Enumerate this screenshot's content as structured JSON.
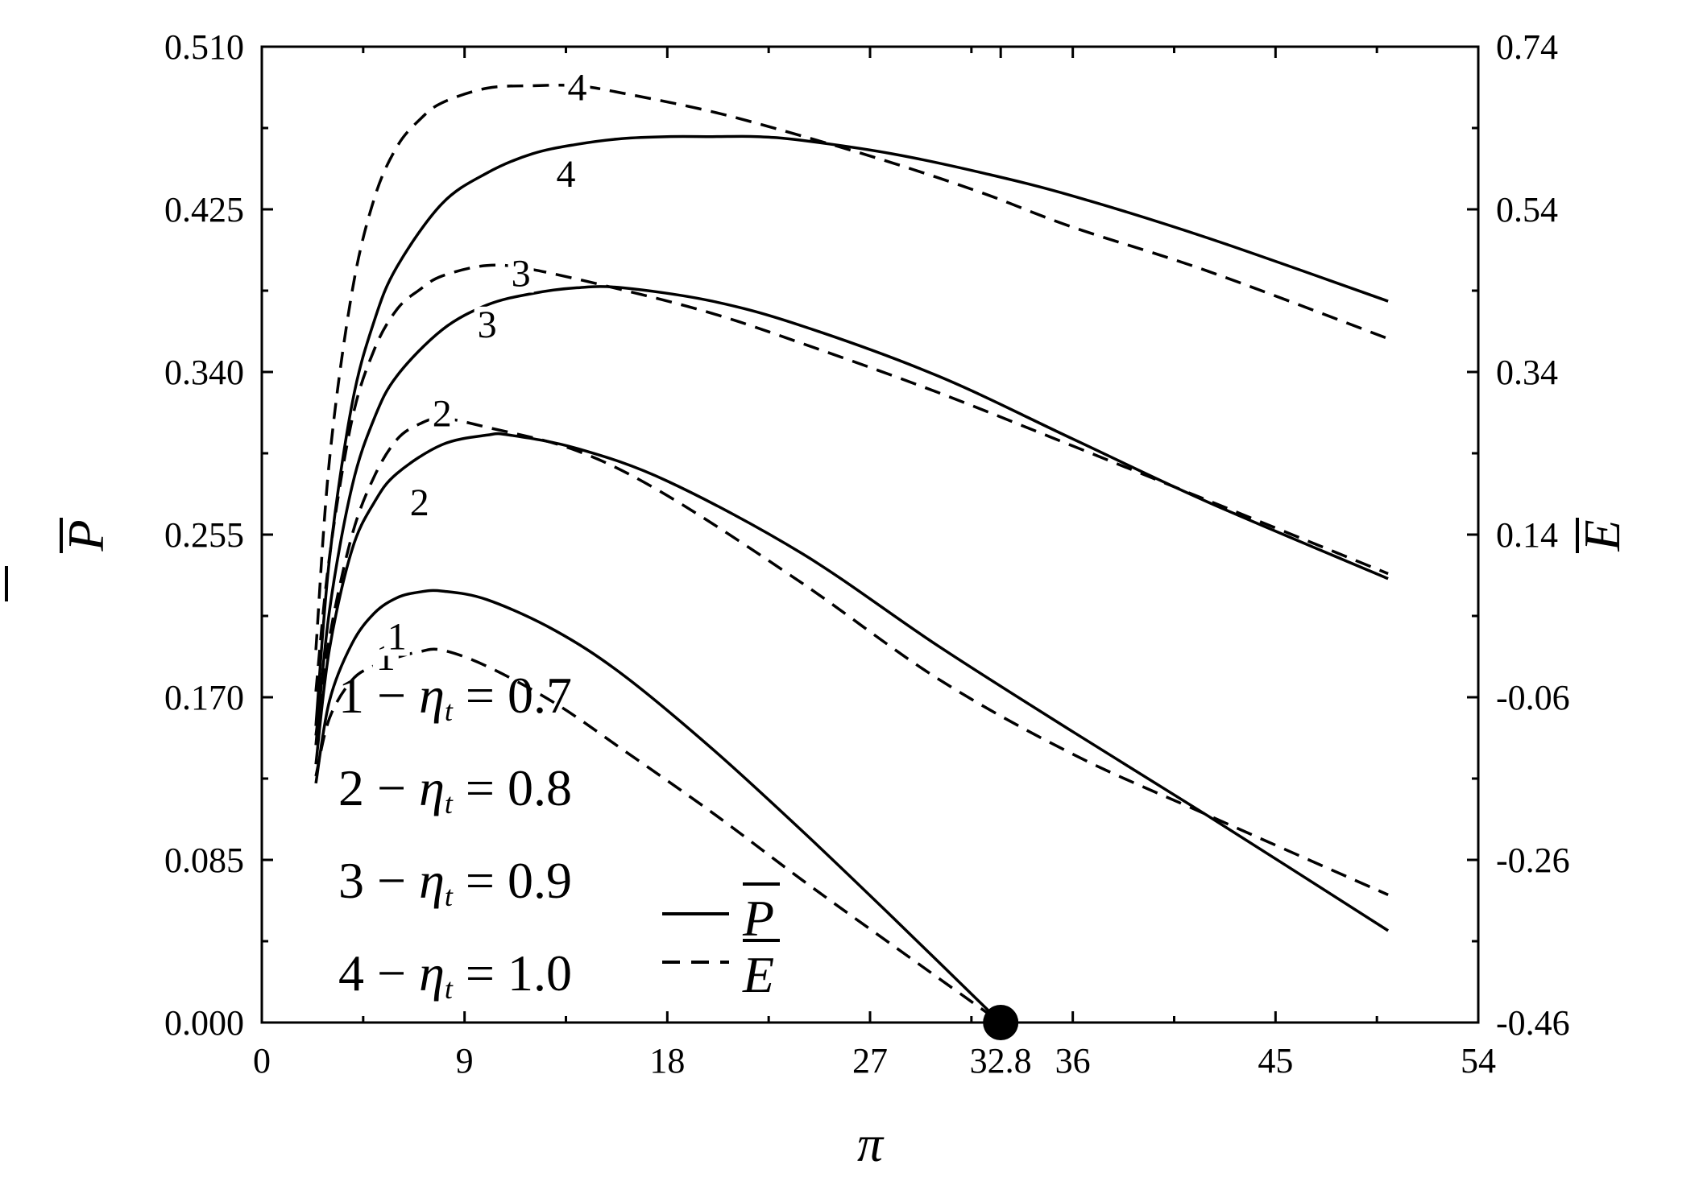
{
  "chart_data": {
    "type": "line",
    "title": "",
    "xlabel": "π",
    "ylabel_left": "P",
    "ylabel_right": "E",
    "xlim": [
      0,
      54
    ],
    "ylim_left": [
      0,
      0.51
    ],
    "ylim_right": [
      -0.46,
      0.74
    ],
    "x_ticks": [
      "0",
      "9",
      "18",
      "27",
      "32.8",
      "36",
      "45",
      "54"
    ],
    "x_tick_values": [
      0,
      9,
      18,
      27,
      32.8,
      36,
      45,
      54
    ],
    "y_left_ticks": [
      "0.000",
      "0.085",
      "0.170",
      "0.255",
      "0.340",
      "0.425",
      "0.510"
    ],
    "y_left_tick_values": [
      0,
      0.085,
      0.17,
      0.255,
      0.34,
      0.425,
      0.51
    ],
    "y_right_ticks": [
      "-0.46",
      "-0.26",
      "-0.06",
      "0.14",
      "0.34",
      "0.54",
      "0.74"
    ],
    "y_right_tick_values": [
      -0.46,
      -0.26,
      -0.06,
      0.14,
      0.34,
      0.54,
      0.74
    ],
    "grid": false,
    "legend_position": "bottom-left",
    "marker_point": {
      "x": 32.8,
      "y": 0.0
    },
    "legend": {
      "eta_rows": [
        {
          "prefix": "1 − ",
          "eta": "η",
          "sub": "t",
          "suffix": " = 0.7"
        },
        {
          "prefix": "2 − ",
          "eta": "η",
          "sub": "t",
          "suffix": " = 0.8"
        },
        {
          "prefix": "3 − ",
          "eta": "η",
          "sub": "t",
          "suffix": " = 0.9"
        },
        {
          "prefix": "4 − ",
          "eta": "η",
          "sub": "t",
          "suffix": " = 1.0"
        }
      ],
      "line_entries": [
        {
          "style": "solid",
          "label": "P"
        },
        {
          "style": "dashed",
          "label": "E"
        }
      ]
    },
    "series": [
      {
        "label": "1",
        "quantity": "P",
        "axis": "left",
        "style": "solid",
        "x": [
          2.4,
          3,
          4,
          5,
          6,
          7,
          8,
          10,
          13,
          16,
          20,
          24,
          28,
          32.8
        ],
        "y": [
          0.125,
          0.168,
          0.198,
          0.214,
          0.222,
          0.225,
          0.2255,
          0.221,
          0.205,
          0.182,
          0.143,
          0.1,
          0.055,
          0.0
        ]
      },
      {
        "label": "1",
        "quantity": "E",
        "axis": "right",
        "style": "dashed",
        "x": [
          2.4,
          3,
          4,
          5,
          6,
          7,
          8,
          10,
          13,
          16,
          20,
          24,
          28,
          32.8
        ],
        "y": [
          -0.157,
          -0.086,
          -0.039,
          -0.021,
          -0.011,
          -0.004,
          -0.002,
          -0.022,
          -0.067,
          -0.124,
          -0.202,
          -0.285,
          -0.365,
          -0.46
        ]
      },
      {
        "label": "2",
        "quantity": "P",
        "axis": "left",
        "style": "solid",
        "x": [
          2.4,
          3,
          4,
          5,
          6,
          8,
          10,
          11,
          14,
          18,
          24,
          30,
          36,
          42,
          50
        ],
        "y": [
          0.135,
          0.195,
          0.247,
          0.272,
          0.287,
          0.302,
          0.307,
          0.307,
          0.3,
          0.283,
          0.245,
          0.197,
          0.152,
          0.108,
          0.048
        ]
      },
      {
        "label": "2",
        "quantity": "E",
        "axis": "right",
        "style": "dashed",
        "x": [
          2.4,
          3,
          4,
          5,
          6,
          7,
          8,
          10,
          14,
          18,
          24,
          30,
          36,
          42,
          50
        ],
        "y": [
          -0.107,
          0.013,
          0.139,
          0.212,
          0.257,
          0.276,
          0.283,
          0.272,
          0.243,
          0.188,
          0.08,
          -0.037,
          -0.13,
          -0.205,
          -0.303
        ]
      },
      {
        "label": "3",
        "quantity": "P",
        "axis": "left",
        "style": "solid",
        "x": [
          2.4,
          3,
          4,
          5,
          6,
          8,
          10,
          12,
          14,
          16,
          20,
          24,
          30,
          36,
          42,
          50
        ],
        "y": [
          0.145,
          0.215,
          0.28,
          0.316,
          0.338,
          0.362,
          0.375,
          0.381,
          0.384,
          0.384,
          0.377,
          0.364,
          0.338,
          0.305,
          0.272,
          0.232
        ]
      },
      {
        "label": "3",
        "quantity": "E",
        "axis": "right",
        "style": "dashed",
        "x": [
          2.4,
          3,
          4,
          5,
          6,
          7,
          8,
          10,
          12,
          16,
          20,
          24,
          30,
          36,
          42,
          50
        ],
        "y": [
          -0.053,
          0.112,
          0.281,
          0.368,
          0.417,
          0.441,
          0.458,
          0.471,
          0.466,
          0.441,
          0.412,
          0.375,
          0.315,
          0.249,
          0.182,
          0.092
        ]
      },
      {
        "label": "4",
        "quantity": "P",
        "axis": "left",
        "style": "solid",
        "x": [
          2.4,
          3,
          4,
          5,
          6,
          8,
          10,
          12,
          14,
          16,
          18,
          20,
          22,
          24,
          28,
          32,
          36,
          42,
          50
        ],
        "y": [
          0.155,
          0.242,
          0.323,
          0.367,
          0.395,
          0.428,
          0.444,
          0.454,
          0.459,
          0.462,
          0.463,
          0.463,
          0.463,
          0.461,
          0.454,
          0.444,
          0.432,
          0.41,
          0.377
        ]
      },
      {
        "label": "4",
        "quantity": "E",
        "axis": "right",
        "style": "dashed",
        "x": [
          2.4,
          3,
          4,
          5,
          6,
          7,
          8,
          10,
          12,
          14,
          16,
          20,
          24,
          28,
          32,
          36,
          42,
          50
        ],
        "y": [
          -0.002,
          0.231,
          0.438,
          0.554,
          0.617,
          0.65,
          0.671,
          0.689,
          0.692,
          0.692,
          0.683,
          0.66,
          0.63,
          0.597,
          0.56,
          0.518,
          0.464,
          0.381
        ]
      }
    ]
  }
}
